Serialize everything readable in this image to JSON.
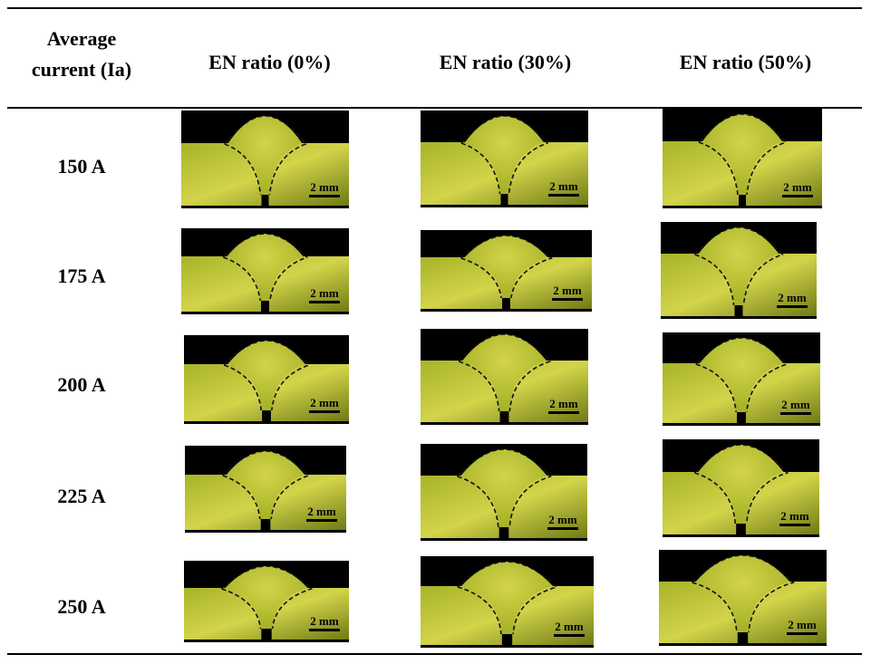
{
  "table": {
    "header": {
      "row_label_header_line1": "Average",
      "row_label_header_line2": "current (Ia)",
      "columns": [
        "EN ratio (0%)",
        "EN ratio (30%)",
        "EN ratio (50%)"
      ]
    },
    "rows": [
      {
        "label": "150 A"
      },
      {
        "label": "175 A"
      },
      {
        "label": "200 A"
      },
      {
        "label": "225 A"
      },
      {
        "label": "250 A"
      }
    ],
    "scale_bar_label": "2 mm"
  },
  "colors": {
    "weld_dark": "#6f7a14",
    "weld_mid": "#a8b328",
    "weld_light": "#d2d44a",
    "background_black": "#000000",
    "fusion_line": "#111111"
  }
}
